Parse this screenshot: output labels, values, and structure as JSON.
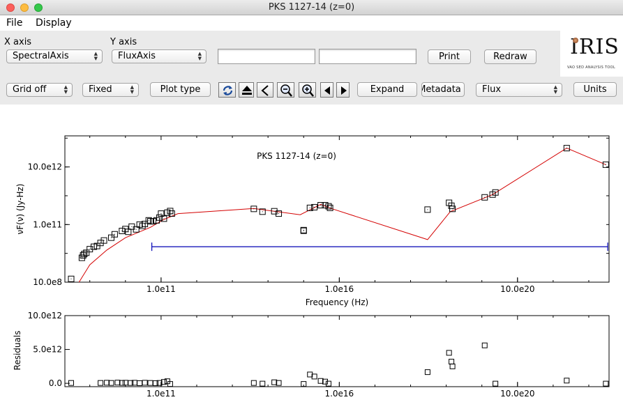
{
  "window": {
    "title": "PKS 1127-14 (z=0)"
  },
  "menubar": {
    "items": [
      "File",
      "Display"
    ]
  },
  "axes_controls": {
    "x_label": "X axis",
    "x_value": "SpectralAxis",
    "y_label": "Y axis",
    "y_value": "FluxAxis",
    "field1_value": "",
    "field2_value": ""
  },
  "toolbar": {
    "print_label": "Print",
    "redraw_label": "Redraw",
    "grid_value": "Grid off",
    "scale_value": "Fixed",
    "plot_type_label": "Plot type",
    "expand_label": "Expand",
    "metadata_label": "Metadata",
    "flux_value": "Flux",
    "units_label": "Units"
  },
  "logo": {
    "text": "IRIS",
    "subtitle": "VAO SED ANALYSIS TOOL"
  },
  "colors": {
    "model_line": "#d40000",
    "error_bar": "#0000b4",
    "points": "#000000"
  },
  "chart_data": [
    {
      "type": "scatter",
      "title": "PKS 1127-14 (z=0)",
      "xlabel": "Frequency (Hz)",
      "ylabel": "νF(ν) (Jy-Hz)",
      "xscale": "log",
      "yscale": "log",
      "xlim": [
        200000000.0,
        3.7e+23
      ],
      "ylim": [
        1000000000.0,
        120000000000000.0
      ],
      "x_ticks": [
        "1.0e11",
        "1.0e16",
        "10.0e20"
      ],
      "y_ticks": [
        "10.0e8",
        "1.0e11",
        "10.0e12"
      ],
      "grid": false,
      "points": [
        [
          300000000.0,
          1300000000.0
        ],
        [
          600000000.0,
          7000000000.0
        ],
        [
          650000000.0,
          8500000000.0
        ],
        [
          700000000.0,
          9500000000.0
        ],
        [
          800000000.0,
          10500000000.0
        ],
        [
          1000000000.0,
          14000000000.0
        ],
        [
          1300000000.0,
          17000000000.0
        ],
        [
          1600000000.0,
          18000000000.0
        ],
        [
          2000000000.0,
          23000000000.0
        ],
        [
          2500000000.0,
          28000000000.0
        ],
        [
          4000000000.0,
          35000000000.0
        ],
        [
          5000000000.0,
          46000000000.0
        ],
        [
          8000000000.0,
          60000000000.0
        ],
        [
          10000000000.0,
          70000000000.0
        ],
        [
          12000000000.0,
          56000000000.0
        ],
        [
          15000000000.0,
          85000000000.0
        ],
        [
          20000000000.0,
          68000000000.0
        ],
        [
          25000000000.0,
          100000000000.0
        ],
        [
          30000000000.0,
          90000000000.0
        ],
        [
          35000000000.0,
          105000000000.0
        ],
        [
          45000000000.0,
          140000000000.0
        ],
        [
          50000000000.0,
          130000000000.0
        ],
        [
          60000000000.0,
          130000000000.0
        ],
        [
          75000000000.0,
          140000000000.0
        ],
        [
          90000000000.0,
          175000000000.0
        ],
        [
          100000000000.0,
          240000000000.0
        ],
        [
          120000000000.0,
          160000000000.0
        ],
        [
          150000000000.0,
          260000000000.0
        ],
        [
          180000000000.0,
          295000000000.0
        ],
        [
          200000000000.0,
          240000000000.0
        ],
        [
          40000000000000.0,
          350000000000.0
        ],
        [
          70000000000000.0,
          280000000000.0
        ],
        [
          150000000000000.0,
          290000000000.0
        ],
        [
          200000000000000.0,
          240000000000.0
        ],
        [
          1000000000000000.0,
          64000000000.0
        ],
        [
          1000000000000000.0,
          61000000000.0
        ],
        [
          1500000000000000.0,
          380000000000.0
        ],
        [
          2000000000000000.0,
          400000000000.0
        ],
        [
          3000000000000000.0,
          470000000000.0
        ],
        [
          4000000000000000.0,
          470000000000.0
        ],
        [
          5000000000000000.0,
          430000000000.0
        ],
        [
          5500000000000000.0,
          380000000000.0
        ],
        [
          3e+18,
          330000000000.0
        ],
        [
          1.2e+19,
          570000000000.0
        ],
        [
          1.4e+19,
          450000000000.0
        ],
        [
          1.5e+19,
          350000000000.0
        ],
        [
          1.2e+20,
          880000000000.0
        ],
        [
          2e+20,
          1100000000000.0
        ],
        [
          2.4e+20,
          1300000000000.0
        ],
        [
          2.4e+22,
          45000000000000.0
        ],
        [
          3e+23,
          12000000000000.0
        ]
      ],
      "model_line": [
        [
          500000000.0,
          1000000000.0
        ],
        [
          1000000000.0,
          4000000000.0
        ],
        [
          3000000000.0,
          13000000000.0
        ],
        [
          10000000000.0,
          35000000000.0
        ],
        [
          50000000000.0,
          80000000000.0
        ],
        [
          120000000000.0,
          150000000000.0
        ],
        [
          300000000000.0,
          240000000000.0
        ],
        [
          40000000000000.0,
          360000000000.0
        ],
        [
          800000000000000.0,
          220000000000.0
        ],
        [
          3000000000000000.0,
          500000000000.0
        ],
        [
          6000000000000000.0,
          360000000000.0
        ],
        [
          3e+18,
          30000000000.0
        ],
        [
          1.3e+19,
          280000000000.0
        ],
        [
          2e+20,
          1100000000000.0
        ],
        [
          2.4e+22,
          45000000000000.0
        ],
        [
          3e+23,
          12000000000000.0
        ]
      ],
      "error_bar": {
        "x_from": 55000000000.0,
        "x_to": 3.4e+23,
        "y": 17000000000.0
      }
    },
    {
      "type": "scatter",
      "ylabel": "Residuals",
      "xscale": "log",
      "xlim": [
        200000000.0,
        3.7e+23
      ],
      "ylim": [
        -500000000000.0,
        10000000000000.0
      ],
      "x_ticks": [
        "1.0e11",
        "1.0e16",
        "10.0e20"
      ],
      "y_ticks": [
        "10.0e12",
        "5.0e12",
        "0.0"
      ],
      "grid": false,
      "points": [
        [
          300000000.0,
          50000000000.0
        ],
        [
          2000000000.0,
          50000000000.0
        ],
        [
          3000000000.0,
          80000000000.0
        ],
        [
          4000000000.0,
          50000000000.0
        ],
        [
          6000000000.0,
          100000000000.0
        ],
        [
          8000000000.0,
          60000000000.0
        ],
        [
          10000000000.0,
          80000000000.0
        ],
        [
          14000000000.0,
          50000000000.0
        ],
        [
          18000000000.0,
          80000000000.0
        ],
        [
          25000000000.0,
          20000000000.0
        ],
        [
          35000000000.0,
          80000000000.0
        ],
        [
          50000000000.0,
          50000000000.0
        ],
        [
          70000000000.0,
          20000000000.0
        ],
        [
          90000000000.0,
          50000000000.0
        ],
        [
          120000000000.0,
          200000000000.0
        ],
        [
          150000000000.0,
          300000000000.0
        ],
        [
          180000000000.0,
          -100000000000.0
        ],
        [
          40000000000000.0,
          50000000000.0
        ],
        [
          70000000000000.0,
          -50000000000.0
        ],
        [
          150000000000000.0,
          150000000000.0
        ],
        [
          200000000000000.0,
          50000000000.0
        ],
        [
          1000000000000000.0,
          -100000000000.0
        ],
        [
          1500000000000000.0,
          1300000000000.0
        ],
        [
          2000000000000000.0,
          1000000000000.0
        ],
        [
          3000000000000000.0,
          350000000000.0
        ],
        [
          4000000000000000.0,
          250000000000.0
        ],
        [
          5000000000000000.0,
          -50000000000.0
        ],
        [
          3e+18,
          1650000000000.0
        ],
        [
          1.2e+19,
          4500000000000.0
        ],
        [
          1.4e+19,
          3200000000000.0
        ],
        [
          1.5e+19,
          2500000000000.0
        ],
        [
          1.2e+20,
          5600000000000.0
        ],
        [
          2.4e+20,
          -50000000000.0
        ],
        [
          2.4e+22,
          400000000000.0
        ],
        [
          3e+23,
          -50000000000.0
        ]
      ]
    }
  ]
}
